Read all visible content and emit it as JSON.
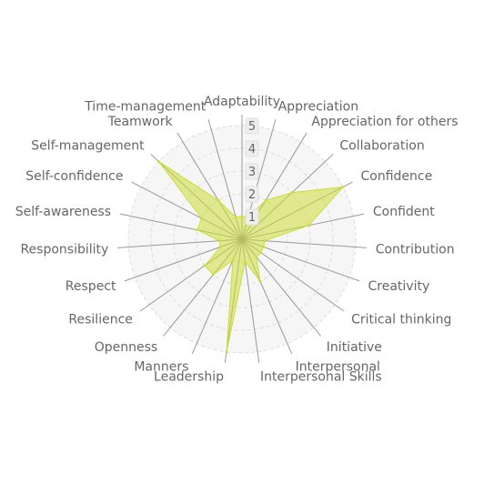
{
  "chart_data": {
    "type": "radar",
    "title": "",
    "labels": [
      "Adaptability",
      "Appreciation",
      "Appreciation for others",
      "Collaboration",
      "Confidence",
      "Confident",
      "Contribution",
      "Creativity",
      "Critical thinking",
      "Initiative",
      "Interpersonal",
      "Interpersonal Skills",
      "Leadership",
      "Manners",
      "Openness",
      "Resilience",
      "Respect",
      "Responsibility",
      "Self-awareness",
      "Self-confidence",
      "Self-management",
      "Teamwork",
      "Time-management"
    ],
    "series": [
      {
        "name": "",
        "color": "#cddc39",
        "values": [
          1,
          1,
          2,
          3,
          5,
          3,
          1,
          1,
          1,
          1,
          2,
          1,
          5,
          1,
          2,
          2,
          1,
          1,
          2,
          2,
          5,
          2,
          1
        ]
      }
    ],
    "r_range": [
      0,
      5
    ],
    "ticks": [
      "1",
      "2",
      "3",
      "4",
      "5"
    ],
    "grid": true
  }
}
